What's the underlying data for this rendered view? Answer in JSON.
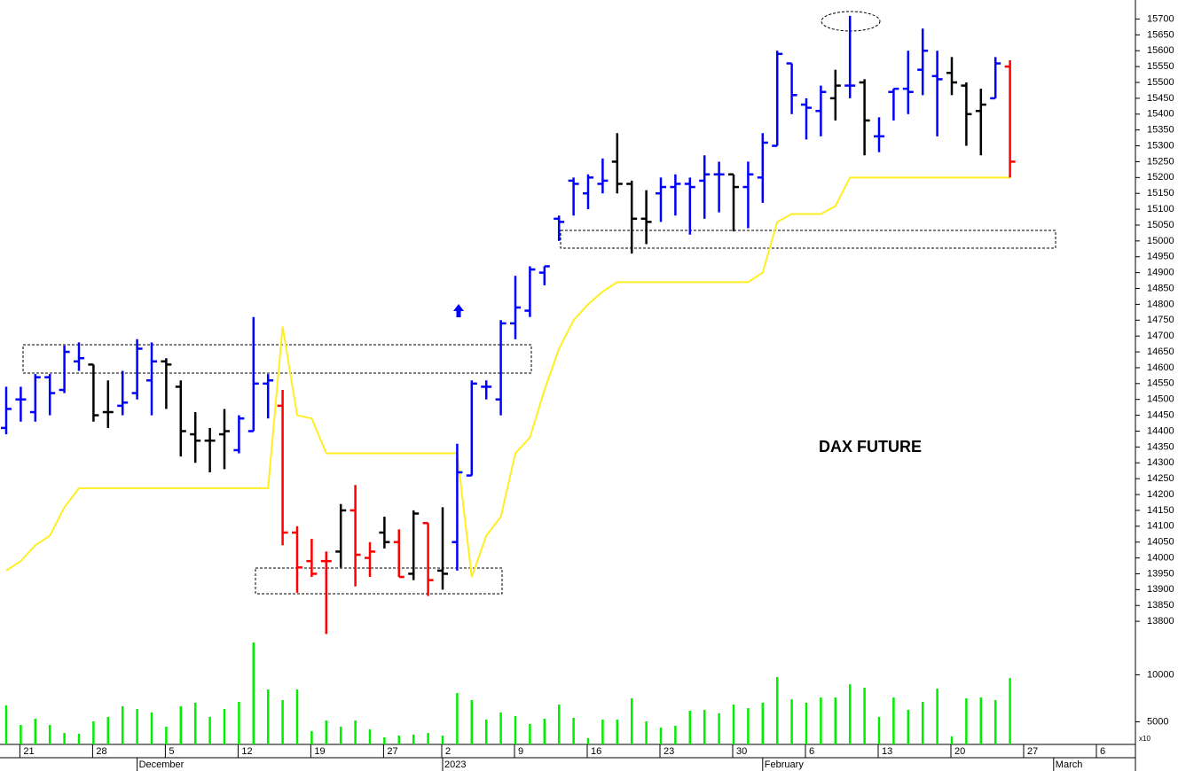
{
  "chart_data": {
    "type": "ohlc",
    "annotation": "DAX FUTURE",
    "categories": [
      null,
      "21",
      null,
      null,
      null,
      null,
      "28",
      null,
      null,
      null,
      null,
      "5",
      null,
      null,
      null,
      null,
      "12",
      null,
      null,
      null,
      null,
      "19",
      null,
      null,
      null,
      null,
      "27",
      null,
      null,
      null,
      "2",
      null,
      null,
      null,
      null,
      "9",
      null,
      null,
      null,
      null,
      "16",
      null,
      null,
      null,
      null,
      "23",
      null,
      null,
      null,
      null,
      "30",
      null,
      null,
      null,
      null,
      "6",
      null,
      null,
      null,
      null,
      "13",
      null,
      null,
      null,
      null,
      "20",
      null,
      null,
      null,
      null,
      "27",
      null,
      null,
      null,
      null,
      "6",
      null,
      null
    ],
    "month_labels": [
      null,
      null,
      null,
      null,
      null,
      null,
      null,
      null,
      null,
      "December",
      null,
      null,
      null,
      null,
      null,
      null,
      null,
      null,
      null,
      null,
      null,
      null,
      null,
      null,
      null,
      null,
      null,
      null,
      null,
      null,
      "2023",
      null,
      null,
      null,
      null,
      null,
      null,
      null,
      null,
      null,
      null,
      null,
      null,
      null,
      null,
      null,
      null,
      null,
      null,
      null,
      null,
      null,
      "February",
      null,
      null,
      null,
      null,
      null,
      null,
      null,
      null,
      null,
      null,
      null,
      null,
      null,
      null,
      null,
      null,
      null,
      null,
      null,
      "March",
      null,
      null,
      null,
      null,
      null
    ],
    "open": [
      14410,
      14500,
      14460,
      14570,
      14530,
      14620,
      14610,
      14460,
      14480,
      14520,
      14560,
      14620,
      14540,
      14390,
      14370,
      14390,
      14340,
      14400,
      14550,
      14480,
      14080,
      13990,
      13990,
      14020,
      14150,
      14000,
      14080,
      14050,
      13950,
      14110,
      13960,
      14050,
      14260,
      14540,
      14500,
      14740,
      14780,
      14900,
      15070,
      15190,
      15150,
      15180,
      15250,
      15180,
      15070,
      15150,
      15170,
      15180,
      15190,
      15210,
      15210,
      15170,
      15200,
      15300,
      15560,
      15430,
      15410,
      15450,
      15490,
      15500,
      15330,
      15470,
      15480,
      15540,
      15520,
      15530,
      15490,
      15410,
      15450,
      15550,
      null,
      null,
      null,
      null,
      null,
      null,
      null,
      null
    ],
    "high": [
      14540,
      14540,
      14580,
      14580,
      14670,
      14680,
      14610,
      14560,
      14590,
      14690,
      14680,
      14630,
      14560,
      14460,
      14410,
      14470,
      14450,
      14760,
      14580,
      14530,
      14100,
      14060,
      14020,
      14170,
      14230,
      14050,
      14130,
      14090,
      14150,
      14110,
      14160,
      14360,
      14560,
      14560,
      14750,
      14890,
      14920,
      14920,
      15080,
      15200,
      15210,
      15260,
      15340,
      15190,
      15160,
      15200,
      15210,
      15200,
      15270,
      15250,
      15210,
      15250,
      15340,
      15600,
      15560,
      15450,
      15490,
      15540,
      15710,
      15510,
      15390,
      15480,
      15600,
      15670,
      15600,
      15580,
      15500,
      15480,
      15580,
      15570,
      null,
      null,
      null,
      null,
      null,
      null,
      null,
      null
    ],
    "low": [
      14390,
      14430,
      14430,
      14450,
      14520,
      14590,
      14430,
      14410,
      14450,
      14500,
      14450,
      14470,
      14320,
      14300,
      14270,
      14280,
      14330,
      14400,
      14440,
      14040,
      13890,
      13940,
      13760,
      13970,
      13910,
      13940,
      14030,
      13940,
      13930,
      13880,
      13900,
      13960,
      14260,
      14500,
      14450,
      14690,
      14760,
      14860,
      15000,
      15080,
      15100,
      15150,
      15150,
      14960,
      14990,
      15060,
      15080,
      15020,
      15070,
      15090,
      15030,
      15040,
      15120,
      15300,
      15400,
      15320,
      15330,
      15380,
      15450,
      15270,
      15280,
      15380,
      15400,
      15460,
      15330,
      15460,
      15300,
      15270,
      15450,
      15200,
      null,
      null,
      null,
      null,
      null,
      null,
      null,
      null
    ],
    "close": [
      14470,
      14500,
      14570,
      14520,
      14650,
      14630,
      14450,
      14460,
      14490,
      14660,
      14620,
      14610,
      14400,
      14370,
      14370,
      14400,
      14440,
      14550,
      14560,
      14080,
      13970,
      13950,
      13990,
      14150,
      14010,
      14020,
      14050,
      13940,
      14140,
      13930,
      13950,
      14270,
      14550,
      14540,
      14740,
      14790,
      14910,
      14920,
      15060,
      15180,
      15200,
      15190,
      15180,
      15070,
      15060,
      15170,
      15180,
      15170,
      15210,
      15210,
      15170,
      15210,
      15310,
      15590,
      15460,
      15420,
      15470,
      15490,
      15490,
      15380,
      15330,
      15480,
      15470,
      15600,
      15510,
      15500,
      15400,
      15430,
      15560,
      15250,
      null,
      null,
      null,
      null,
      null,
      null,
      null,
      null
    ],
    "bar_colors": [
      "#0000ff",
      "#0000ff",
      "#0000ff",
      "#0000ff",
      "#0000ff",
      "#0000ff",
      "#000000",
      "#000000",
      "#0000ff",
      "#0000ff",
      "#0000ff",
      "#000000",
      "#000000",
      "#000000",
      "#000000",
      "#000000",
      "#0000ff",
      "#0000ff",
      "#0000ff",
      "#ff0000",
      "#ff0000",
      "#ff0000",
      "#ff0000",
      "#000000",
      "#ff0000",
      "#ff0000",
      "#000000",
      "#ff0000",
      "#000000",
      "#ff0000",
      "#000000",
      "#0000ff",
      "#0000ff",
      "#0000ff",
      "#0000ff",
      "#0000ff",
      "#0000ff",
      "#0000ff",
      "#0000ff",
      "#0000ff",
      "#0000ff",
      "#0000ff",
      "#000000",
      "#000000",
      "#000000",
      "#0000ff",
      "#0000ff",
      "#0000ff",
      "#0000ff",
      "#0000ff",
      "#000000",
      "#0000ff",
      "#0000ff",
      "#0000ff",
      "#0000ff",
      "#0000ff",
      "#0000ff",
      "#000000",
      "#0000ff",
      "#000000",
      "#0000ff",
      "#0000ff",
      "#0000ff",
      "#0000ff",
      "#0000ff",
      "#000000",
      "#000000",
      "#000000",
      "#0000ff",
      "#ff0000",
      null,
      null,
      null,
      null,
      null,
      null,
      null,
      null
    ],
    "stop_line": {
      "color": "#ffee22",
      "values": [
        13960,
        13990,
        14040,
        14070,
        14160,
        14220,
        14220,
        14220,
        14220,
        14220,
        14220,
        14220,
        14220,
        14220,
        14220,
        14220,
        14220,
        14220,
        14220,
        14730,
        14450,
        14440,
        14330,
        14330,
        14330,
        14330,
        14330,
        14330,
        14330,
        14330,
        14330,
        14330,
        13940,
        14070,
        14130,
        14330,
        14380,
        14530,
        14660,
        14750,
        14800,
        14840,
        14870,
        14870,
        14870,
        14870,
        14870,
        14870,
        14870,
        14870,
        14870,
        14870,
        14900,
        15060,
        15085,
        15085,
        15085,
        15110,
        15200,
        15200,
        15200,
        15200,
        15200,
        15200,
        15200,
        15200,
        15200,
        15200,
        15200,
        15200,
        null,
        null,
        null,
        null,
        null,
        null,
        null,
        null
      ]
    },
    "volume": {
      "color": "#00ee00",
      "values": [
        6750,
        4670,
        5330,
        4670,
        3820,
        3730,
        5050,
        5520,
        6650,
        6370,
        6000,
        4480,
        6650,
        7030,
        5520,
        6370,
        7120,
        13430,
        8440,
        7310,
        8440,
        4010,
        5140,
        4480,
        5140,
        4200,
        3350,
        3540,
        3640,
        3820,
        3540,
        8060,
        7310,
        5240,
        6000,
        5610,
        4770,
        5330,
        6840,
        5430,
        3260,
        5240,
        5240,
        7500,
        5050,
        4390,
        4580,
        6180,
        6270,
        5900,
        6840,
        6460,
        7030,
        9760,
        7400,
        7030,
        7590,
        7590,
        9000,
        8630,
        5520,
        7590,
        6270,
        7120,
        8530,
        3450,
        7500,
        7590,
        7310,
        9660,
        null,
        null,
        null,
        null,
        null,
        null,
        null,
        null
      ],
      "ylim": [
        2600,
        14000
      ],
      "yticks": [
        5000,
        10000
      ],
      "unit_label": "x10"
    },
    "ylim": [
      13750,
      15760
    ],
    "yticks": [
      13800,
      13850,
      13900,
      13950,
      14000,
      14050,
      14100,
      14150,
      14200,
      14250,
      14300,
      14350,
      14400,
      14450,
      14500,
      14550,
      14600,
      14650,
      14700,
      14750,
      14800,
      14850,
      14900,
      14950,
      15000,
      15050,
      15100,
      15150,
      15200,
      15250,
      15300,
      15350,
      15400,
      15450,
      15500,
      15550,
      15600,
      15650,
      15700
    ]
  }
}
